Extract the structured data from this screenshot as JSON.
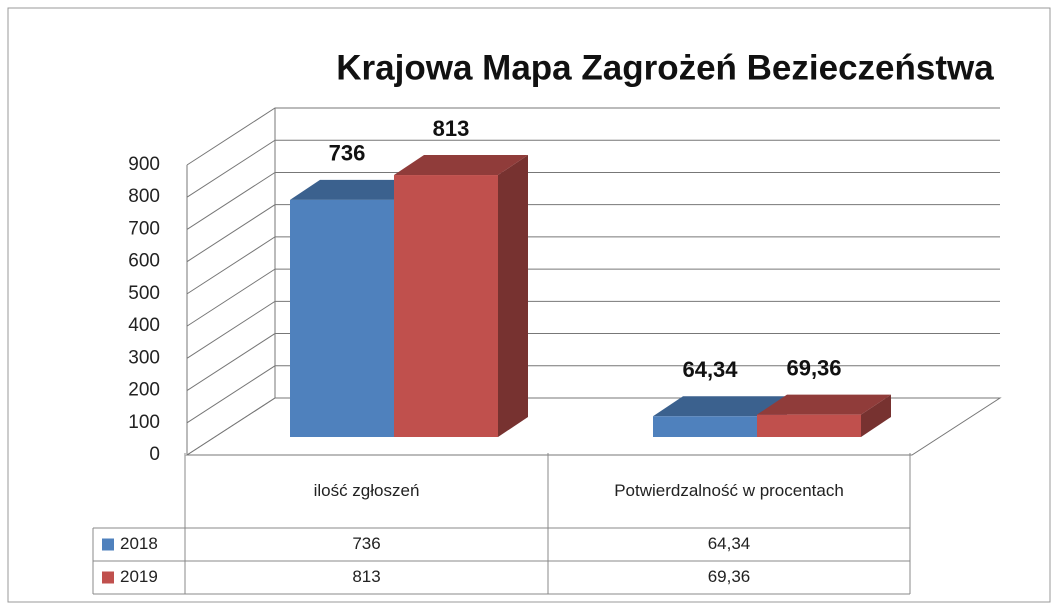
{
  "chart_data": {
    "type": "bar3d",
    "title": "Krajowa Mapa Zagrożeń Bezieczeństwa",
    "categories": [
      "ilość zgłoszeń",
      "Potwierdzalność w procentach"
    ],
    "series": [
      {
        "name": "2018",
        "color": "#4f81bd",
        "values": [
          736,
          64.34
        ],
        "value_labels": [
          "736",
          "64,34"
        ]
      },
      {
        "name": "2019",
        "color": "#c0504d",
        "values": [
          813,
          69.36
        ],
        "value_labels": [
          "813",
          "69,36"
        ]
      }
    ],
    "ylim": [
      0,
      900
    ],
    "yticks": [
      0,
      100,
      200,
      300,
      400,
      500,
      600,
      700,
      800,
      900
    ],
    "grid": true,
    "data_table": true
  }
}
